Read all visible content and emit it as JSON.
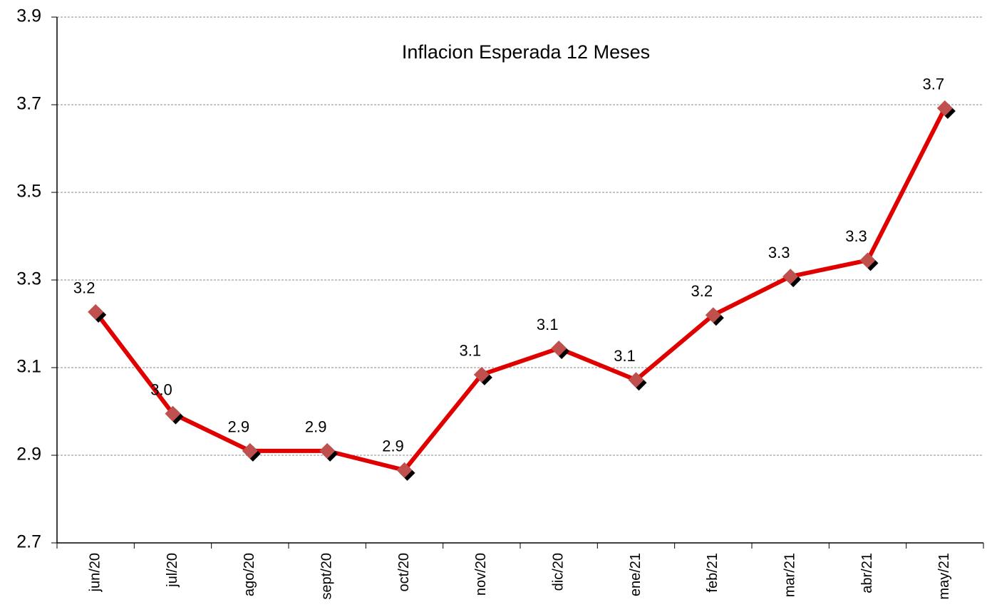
{
  "chart_data": {
    "type": "line",
    "title": "Inflacion Esperada 12 Meses",
    "categories": [
      "jun/20",
      "jul/20",
      "ago/20",
      "sept/20",
      "oct/20",
      "nov/20",
      "dic/20",
      "ene/21",
      "feb/21",
      "mar/21",
      "abr/21",
      "may/21"
    ],
    "series": [
      {
        "name": "Inflacion Esperada 12 Meses",
        "color": "#e00000",
        "marker_color": "#c0504d",
        "values": [
          3.227,
          2.995,
          2.91,
          2.91,
          2.866,
          3.084,
          3.144,
          3.072,
          3.22,
          3.308,
          3.345,
          3.692
        ],
        "value_labels": [
          "3.2",
          "3.0",
          "2.9",
          "2.9",
          "2.9",
          "3.1",
          "3.1",
          "3.1",
          "3.2",
          "3.3",
          "3.3",
          "3.7"
        ]
      }
    ],
    "ylim": [
      2.7,
      3.9
    ],
    "yticks": [
      {
        "value": 2.7,
        "label": "2.7"
      },
      {
        "value": 2.9,
        "label": "2.9"
      },
      {
        "value": 3.1,
        "label": "3.1"
      },
      {
        "value": 3.3,
        "label": "3.3"
      },
      {
        "value": 3.5,
        "label": "3.5"
      },
      {
        "value": 3.7,
        "label": "3.7"
      },
      {
        "value": 3.9,
        "label": "3.9"
      }
    ],
    "grid": true
  }
}
